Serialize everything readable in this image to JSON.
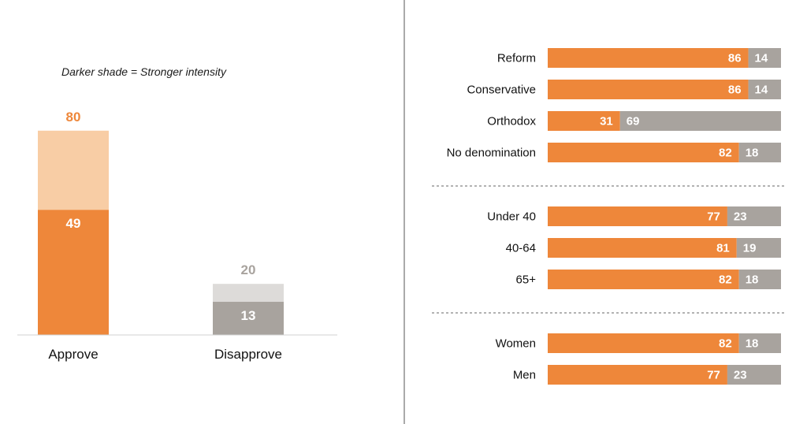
{
  "colors": {
    "approve_strong": "#EE873A",
    "approve_total": "#F8CDA5",
    "disapprove_strong": "#A8A39E",
    "disapprove_total": "#DDDBD9",
    "approve_value_text": "#EE873A",
    "disapprove_value_text": "#A8A39E"
  },
  "chart_data": [
    {
      "type": "bar",
      "note": "Darker shade = Stronger intensity",
      "categories": [
        "Approve",
        "Disapprove"
      ],
      "series": [
        {
          "name": "Stronger intensity",
          "values": [
            49,
            13
          ]
        },
        {
          "values": [
            80,
            20
          ]
        }
      ],
      "ylim": [
        0,
        100
      ]
    },
    {
      "type": "bar",
      "orientation": "horizontal",
      "stacked": true,
      "groups": [
        [
          "Reform",
          "Conservative",
          "Orthodox",
          "No denomination"
        ],
        [
          "Under 40",
          "40-64",
          "65+"
        ],
        [
          "Women",
          "Men"
        ]
      ],
      "categories": [
        "Reform",
        "Conservative",
        "Orthodox",
        "No denomination",
        "Under 40",
        "40-64",
        "65+",
        "Women",
        "Men"
      ],
      "series": [
        {
          "values": [
            86,
            86,
            31,
            82,
            77,
            81,
            82,
            82,
            77
          ]
        },
        {
          "values": [
            14,
            14,
            69,
            18,
            23,
            19,
            18,
            18,
            23
          ]
        }
      ],
      "xlim": [
        0,
        100
      ]
    }
  ]
}
